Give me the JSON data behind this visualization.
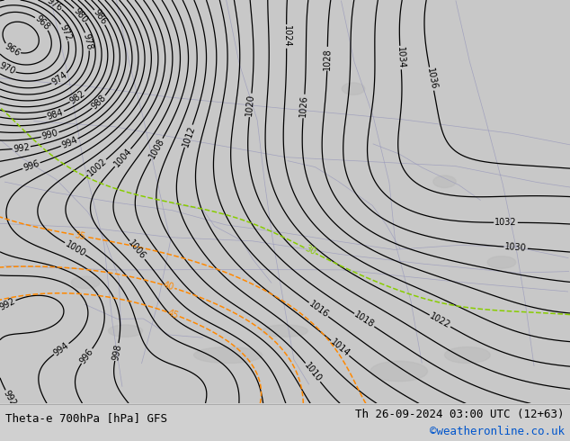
{
  "title_left": "Theta-e 700hPa [hPa] GFS",
  "title_right": "Th 26-09-2024 03:00 UTC (12+63)",
  "title_right2": "©weatheronline.co.uk",
  "bg_color": "#c8c8c8",
  "land_color": "#b4e07a",
  "sea_color": "#c8c8c8",
  "contour_color_black": "#000000",
  "contour_color_orange": "#ff8800",
  "contour_color_yg": "#88cc00",
  "border_color": "#9999bb",
  "figsize": [
    6.34,
    4.9
  ],
  "dpi": 100,
  "bottom_bar_color": "#d0d0d0",
  "font_size_bottom": 9,
  "label_fontsize": 7,
  "title_left_color": "#000000",
  "title_right_color": "#000000",
  "title_right2_color": "#0055cc"
}
